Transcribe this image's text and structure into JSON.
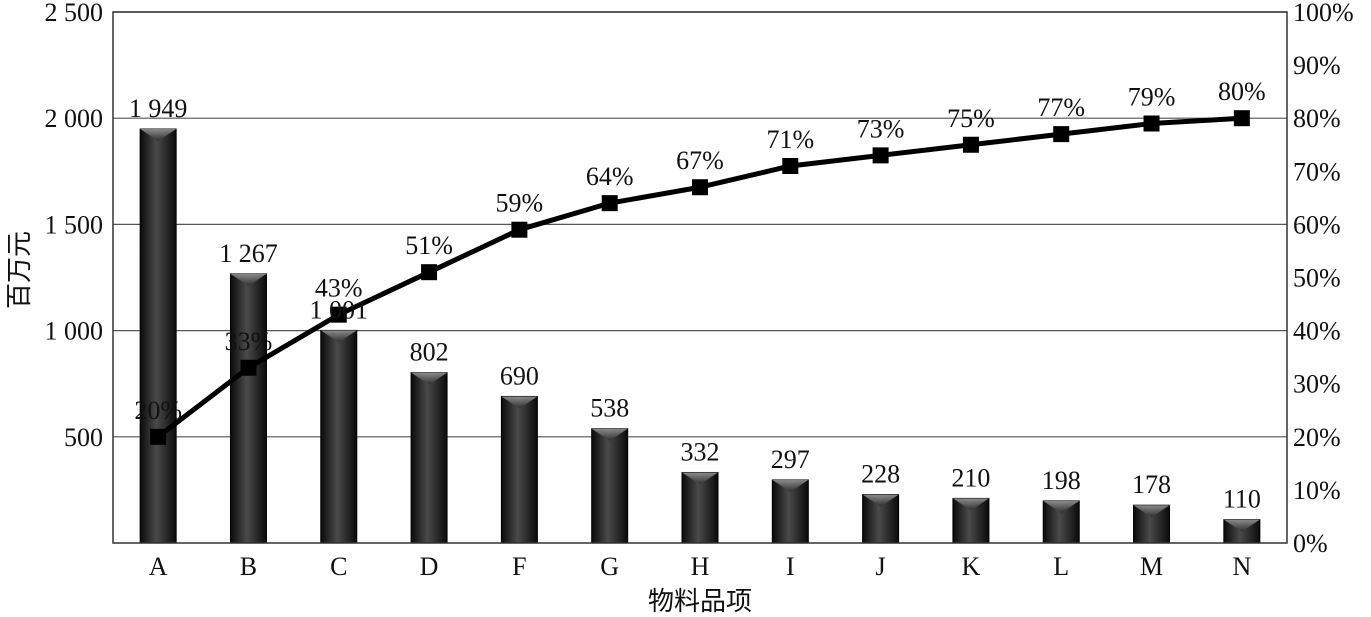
{
  "chart_data": {
    "type": "bar",
    "categories": [
      "A",
      "B",
      "C",
      "D",
      "F",
      "G",
      "H",
      "I",
      "J",
      "K",
      "L",
      "M",
      "N"
    ],
    "series": [
      {
        "type": "bar",
        "axis": "left",
        "values": [
          1949,
          1267,
          1001,
          802,
          690,
          538,
          332,
          297,
          228,
          210,
          198,
          178,
          110
        ],
        "labels": [
          "1 949",
          "1 267",
          "1 001",
          "802",
          "690",
          "538",
          "332",
          "297",
          "228",
          "210",
          "198",
          "178",
          "110"
        ]
      },
      {
        "type": "line",
        "axis": "right",
        "values": [
          20,
          33,
          43,
          51,
          59,
          64,
          67,
          71,
          73,
          75,
          77,
          79,
          80
        ],
        "labels": [
          "20%",
          "33%",
          "43%",
          "51%",
          "59%",
          "64%",
          "67%",
          "71%",
          "73%",
          "75%",
          "77%",
          "79%",
          "80%"
        ]
      }
    ],
    "xlabel": "物料品项",
    "ylabel": "百万元",
    "ylim": [
      0,
      2500
    ],
    "y2lim": [
      0,
      100
    ],
    "yticks": [
      500,
      1000,
      1500,
      2000,
      2500
    ],
    "ytick_labels": [
      "500",
      "1 000",
      "1 500",
      "2 000",
      "2 500"
    ],
    "y2ticks": [
      0,
      10,
      20,
      30,
      40,
      50,
      60,
      70,
      80,
      90,
      100
    ],
    "y2tick_labels": [
      "0%",
      "10%",
      "20%",
      "30%",
      "40%",
      "50%",
      "60%",
      "70%",
      "80%",
      "90%",
      "100%"
    ],
    "grid": true,
    "legend": "none",
    "colors": {
      "bar": "#2b2b2b",
      "line": "#000000",
      "grid": "#555555"
    }
  }
}
